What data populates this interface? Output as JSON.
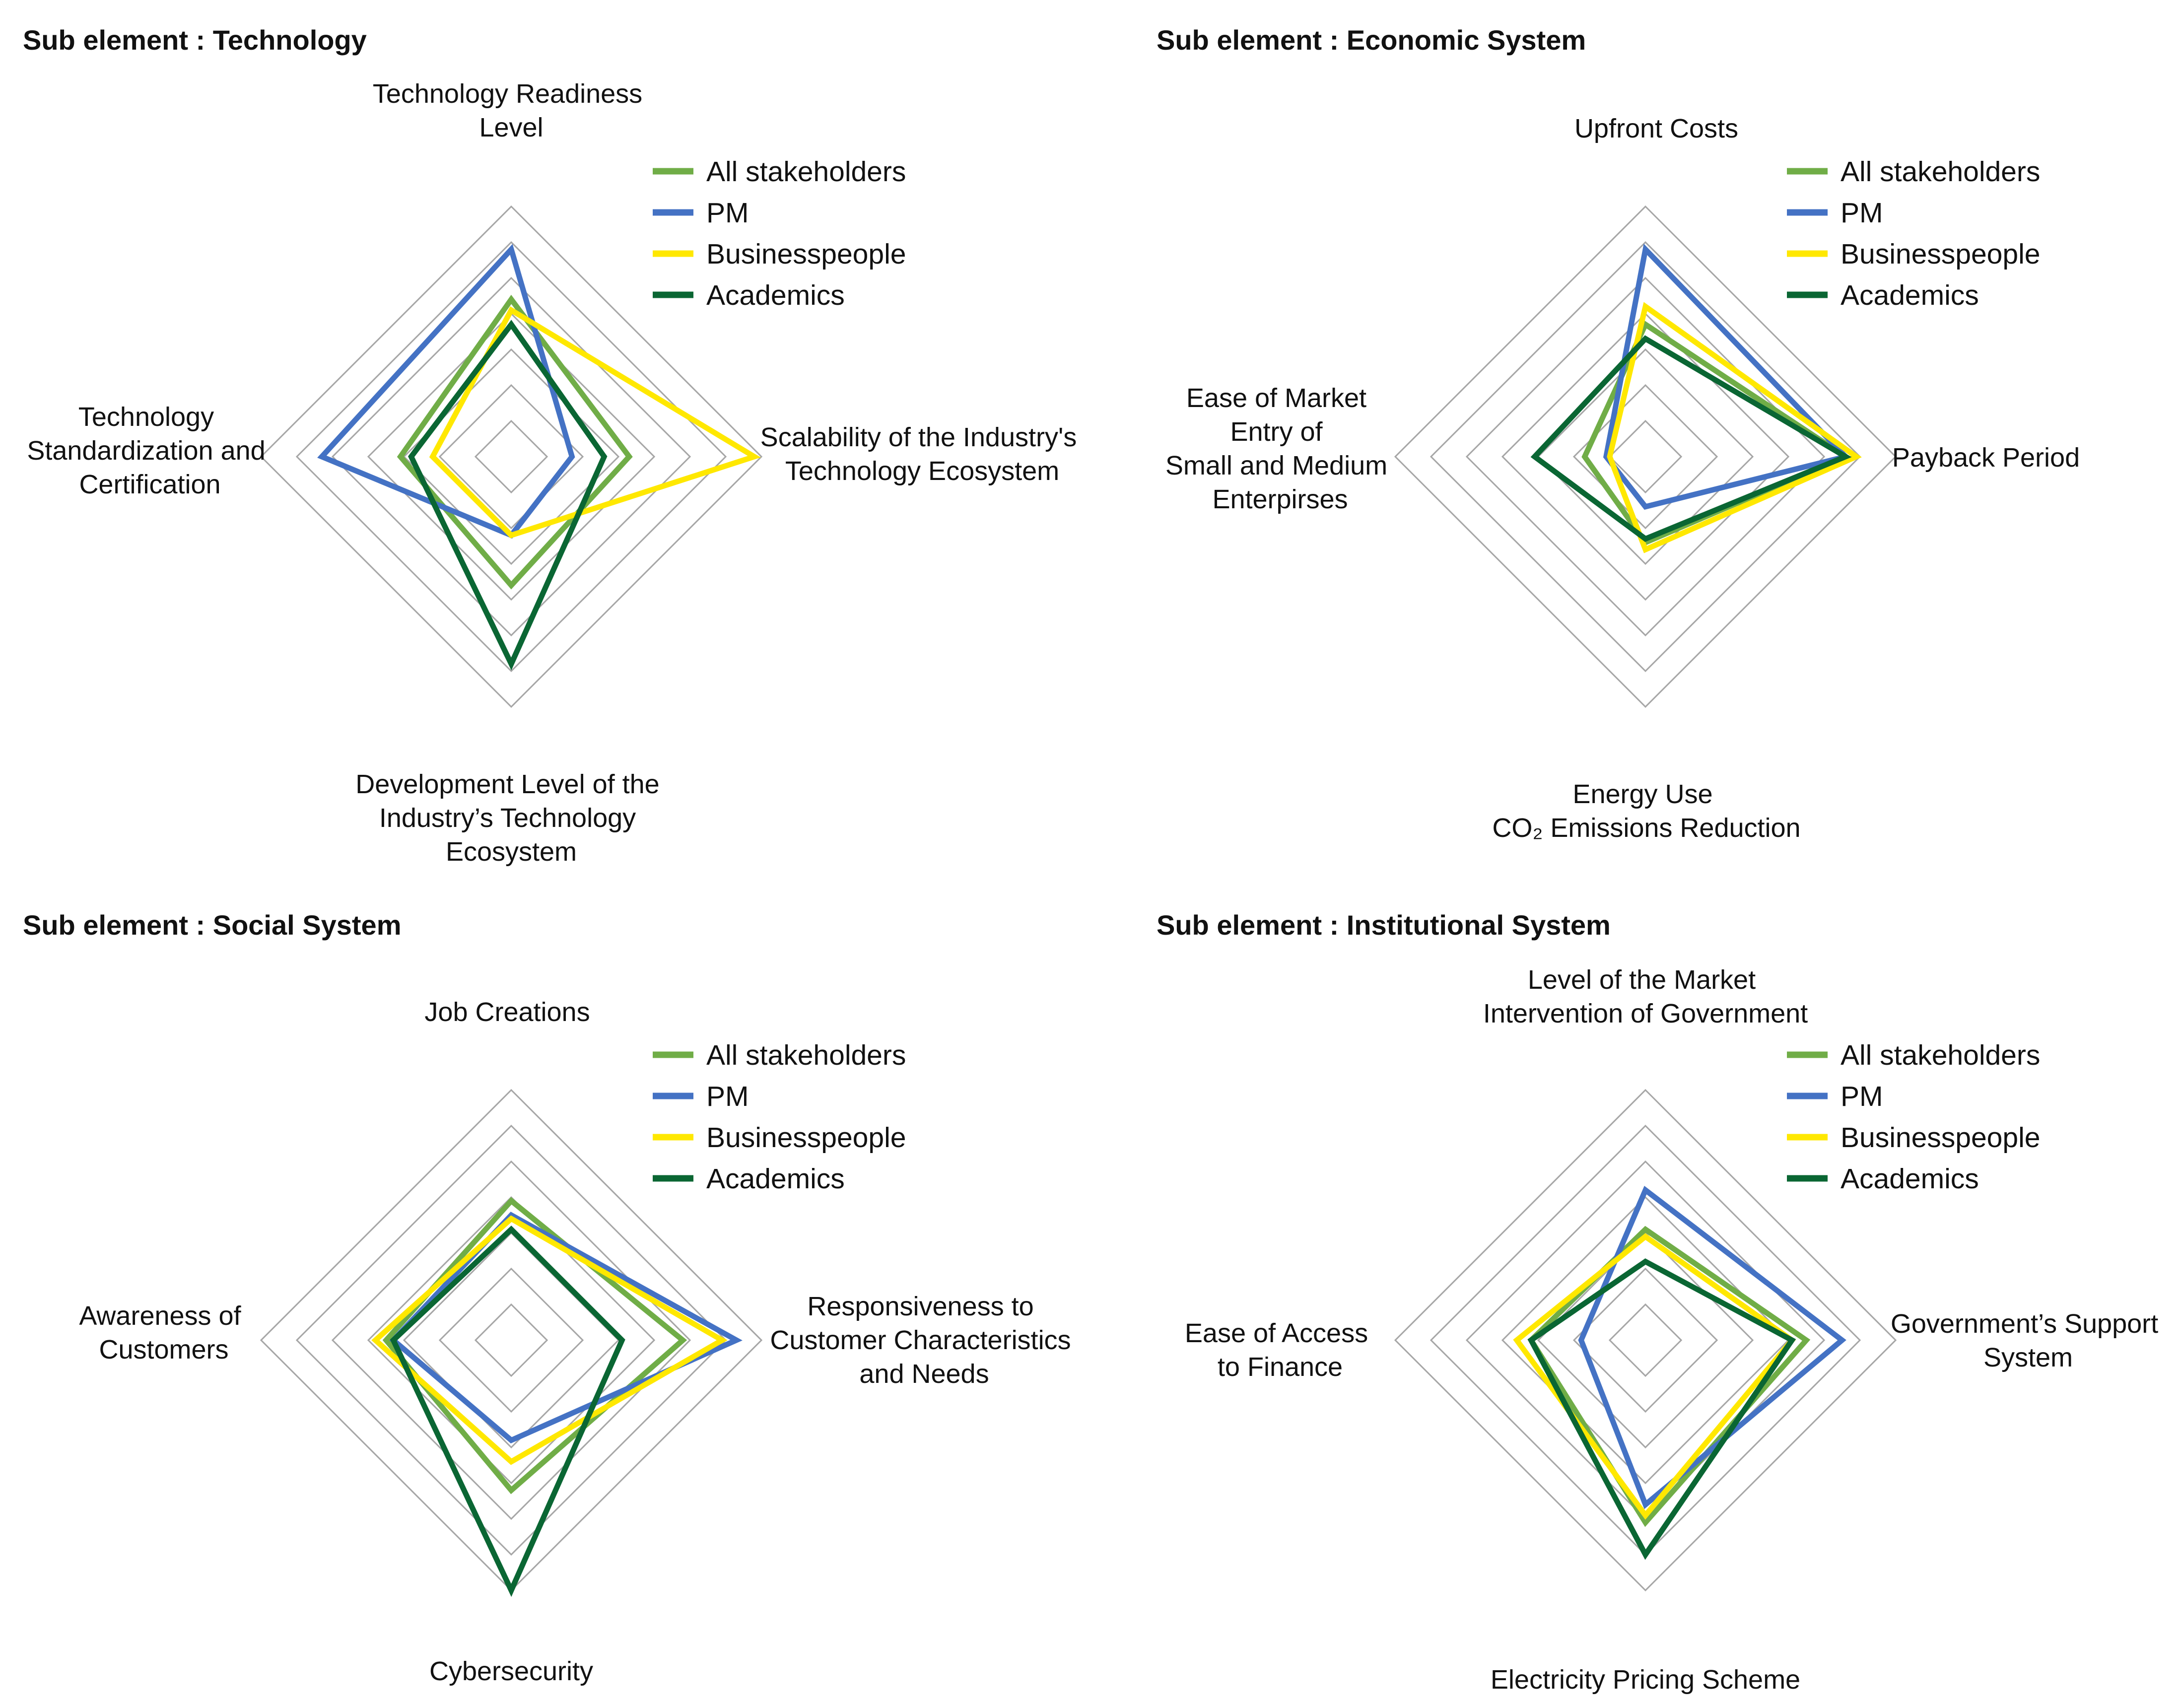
{
  "legend": [
    {
      "key": "all",
      "label": "All stakeholders",
      "color": "#70ad47"
    },
    {
      "key": "pm",
      "label": "PM",
      "color": "#4472c4"
    },
    {
      "key": "biz",
      "label": "Businesspeople",
      "color": "#ffe800"
    },
    {
      "key": "acad",
      "label": "Academics",
      "color": "#0a6633"
    }
  ],
  "grid_color": "#a6a6a6",
  "chart_data": [
    {
      "type": "radar",
      "title": "Sub element : Technology",
      "rings": 7,
      "range": [
        0,
        7
      ],
      "axes": [
        {
          "label": [
            "Technology Readiness",
            "Level"
          ]
        },
        {
          "label": [
            "Scalability of the Industry's",
            "Technology Ecosystem"
          ]
        },
        {
          "label": [
            "Development Level of the",
            "Industry’s Technology",
            "Ecosystem"
          ]
        },
        {
          "label": [
            "Technology",
            "Standardization and",
            "Certification"
          ]
        }
      ],
      "series": [
        {
          "name": "All stakeholders",
          "values": [
            4.4,
            3.3,
            3.6,
            3.1
          ]
        },
        {
          "name": "PM",
          "values": [
            5.8,
            1.7,
            2.2,
            5.3
          ]
        },
        {
          "name": "Businesspeople",
          "values": [
            4.1,
            6.8,
            2.2,
            2.2
          ]
        },
        {
          "name": "Academics",
          "values": [
            3.7,
            2.6,
            5.8,
            2.8
          ]
        }
      ]
    },
    {
      "type": "radar",
      "title": "Sub element : Economic System",
      "rings": 7,
      "range": [
        0,
        7
      ],
      "axes": [
        {
          "label": [
            "Upfront Costs"
          ]
        },
        {
          "label": [
            "Payback Period"
          ]
        },
        {
          "label": [
            "Energy Use",
            "CO₂ Emissions Reduction"
          ]
        },
        {
          "label": [
            "Ease of Market",
            "Entry of",
            "Small and Medium",
            "Enterpirses"
          ]
        }
      ],
      "series": [
        {
          "name": "All stakeholders",
          "values": [
            3.7,
            5.6,
            2.4,
            1.7
          ]
        },
        {
          "name": "PM",
          "values": [
            5.8,
            5.6,
            1.4,
            1.1
          ]
        },
        {
          "name": "Businesspeople",
          "values": [
            4.2,
            5.9,
            2.6,
            1.0
          ]
        },
        {
          "name": "Academics",
          "values": [
            3.3,
            5.6,
            2.3,
            3.1
          ]
        }
      ]
    },
    {
      "type": "radar",
      "title": "Sub element : Social System",
      "rings": 7,
      "range": [
        0,
        7
      ],
      "axes": [
        {
          "label": [
            "Job Creations"
          ]
        },
        {
          "label": [
            "Responsiveness to",
            "Customer Characteristics",
            "and Needs"
          ]
        },
        {
          "label": [
            "Cybersecurity"
          ]
        },
        {
          "label": [
            "Awareness of",
            "Customers"
          ]
        }
      ],
      "series": [
        {
          "name": "All stakeholders",
          "values": [
            3.9,
            4.8,
            4.2,
            3.5
          ]
        },
        {
          "name": "PM",
          "values": [
            3.5,
            6.3,
            2.8,
            3.3
          ]
        },
        {
          "name": "Businesspeople",
          "values": [
            3.4,
            5.9,
            3.4,
            3.8
          ]
        },
        {
          "name": "Academics",
          "values": [
            3.1,
            3.1,
            7.0,
            3.3
          ]
        }
      ]
    },
    {
      "type": "radar",
      "title": "Sub element : Institutional System",
      "rings": 7,
      "range": [
        0,
        7
      ],
      "axes": [
        {
          "label": [
            "Level of the Market",
            "Intervention of Government"
          ]
        },
        {
          "label": [
            "Government’s Support",
            "System"
          ]
        },
        {
          "label": [
            "Electricity Pricing Scheme"
          ]
        },
        {
          "label": [
            "Ease of Access",
            "to Finance"
          ]
        }
      ],
      "series": [
        {
          "name": "All stakeholders",
          "values": [
            3.1,
            4.5,
            5.1,
            3.2
          ]
        },
        {
          "name": "PM",
          "values": [
            4.2,
            5.5,
            4.6,
            1.8
          ]
        },
        {
          "name": "Businesspeople",
          "values": [
            2.9,
            4.1,
            4.9,
            3.6
          ]
        },
        {
          "name": "Academics",
          "values": [
            2.2,
            4.1,
            6.0,
            3.2
          ]
        }
      ]
    }
  ]
}
